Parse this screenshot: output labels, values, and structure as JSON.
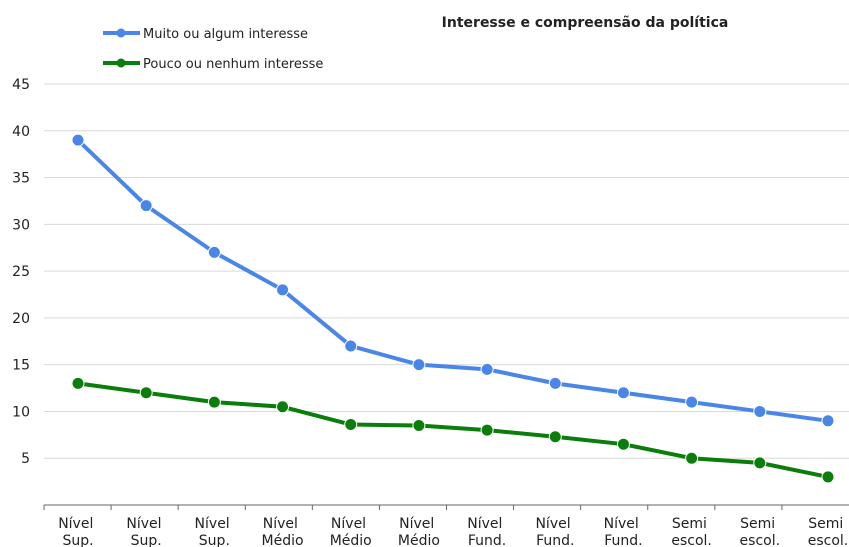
{
  "chart_data": {
    "type": "line",
    "title": "Interesse e compreensão da política",
    "categories": [
      "Nível Sup.",
      "Nível Sup.",
      "Nível Sup.",
      "Nível Médio",
      "Nível Médio",
      "Nível Médio",
      "Nível Fund.",
      "Nível Fund.",
      "Nível Fund.",
      "Semi escol.",
      "Semi escol.",
      "Semi escol."
    ],
    "series": [
      {
        "name": "Muito ou algum interesse",
        "color": "#4a86e8",
        "values": [
          39,
          32,
          27,
          23,
          17,
          15,
          14.5,
          13,
          12,
          11,
          10,
          9
        ]
      },
      {
        "name": "Pouco ou nenhum interesse",
        "color": "#0a7d0a",
        "values": [
          13,
          12,
          11,
          10.5,
          8.6,
          8.5,
          8,
          7.3,
          6.5,
          5,
          4.5,
          3
        ]
      }
    ],
    "ylim": [
      0,
      45
    ],
    "yticks": [
      5,
      10,
      15,
      20,
      25,
      30,
      35,
      40,
      45
    ],
    "grid": true,
    "legend": "top-left"
  }
}
